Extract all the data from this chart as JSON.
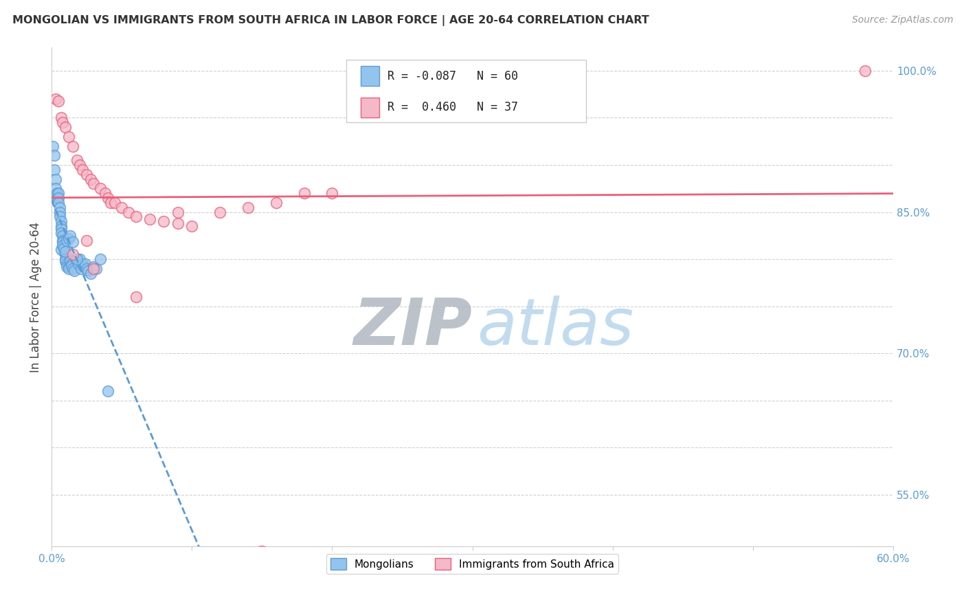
{
  "title": "MONGOLIAN VS IMMIGRANTS FROM SOUTH AFRICA IN LABOR FORCE | AGE 20-64 CORRELATION CHART",
  "source": "Source: ZipAtlas.com",
  "ylabel": "In Labor Force | Age 20-64",
  "x_min": 0.0,
  "x_max": 0.6,
  "y_min": 0.495,
  "y_max": 1.025,
  "y_ticks": [
    0.55,
    0.6,
    0.65,
    0.7,
    0.75,
    0.8,
    0.85,
    0.9,
    0.95,
    1.0
  ],
  "y_tick_labels": [
    "55.0%",
    "",
    "",
    "70.0%",
    "",
    "",
    "85.0%",
    "",
    "",
    "100.0%"
  ],
  "x_ticks": [
    0.0,
    0.1,
    0.2,
    0.3,
    0.4,
    0.5,
    0.6
  ],
  "x_tick_labels": [
    "0.0%",
    "",
    "",
    "",
    "",
    "",
    "60.0%"
  ],
  "mongolian_R": -0.087,
  "mongolian_N": 60,
  "southafrica_R": 0.46,
  "southafrica_N": 37,
  "mongolian_color": "#93C4ED",
  "southafrica_color": "#F5B8C8",
  "mongolian_line_color": "#5B9BD5",
  "southafrica_line_color": "#E8607A",
  "mongolian_x": [
    0.001,
    0.002,
    0.002,
    0.003,
    0.003,
    0.004,
    0.004,
    0.005,
    0.005,
    0.005,
    0.006,
    0.006,
    0.006,
    0.007,
    0.007,
    0.007,
    0.007,
    0.008,
    0.008,
    0.008,
    0.009,
    0.009,
    0.009,
    0.01,
    0.01,
    0.01,
    0.011,
    0.011,
    0.012,
    0.012,
    0.013,
    0.013,
    0.014,
    0.014,
    0.015,
    0.016,
    0.017,
    0.018,
    0.019,
    0.02,
    0.021,
    0.022,
    0.023,
    0.024,
    0.025,
    0.026,
    0.028,
    0.03,
    0.032,
    0.035,
    0.007,
    0.008,
    0.009,
    0.01,
    0.011,
    0.012,
    0.013,
    0.015,
    0.018,
    0.04
  ],
  "mongolian_y": [
    0.92,
    0.91,
    0.895,
    0.885,
    0.875,
    0.87,
    0.865,
    0.87,
    0.865,
    0.86,
    0.855,
    0.85,
    0.845,
    0.84,
    0.835,
    0.832,
    0.828,
    0.825,
    0.82,
    0.818,
    0.815,
    0.812,
    0.808,
    0.805,
    0.8,
    0.798,
    0.795,
    0.792,
    0.792,
    0.79,
    0.8,
    0.798,
    0.795,
    0.793,
    0.79,
    0.788,
    0.8,
    0.8,
    0.795,
    0.8,
    0.79,
    0.795,
    0.792,
    0.795,
    0.79,
    0.788,
    0.785,
    0.792,
    0.79,
    0.8,
    0.81,
    0.815,
    0.812,
    0.808,
    0.82,
    0.822,
    0.825,
    0.818,
    0.8,
    0.66
  ],
  "southafrica_x": [
    0.003,
    0.005,
    0.007,
    0.008,
    0.01,
    0.012,
    0.015,
    0.018,
    0.02,
    0.022,
    0.025,
    0.028,
    0.03,
    0.035,
    0.038,
    0.04,
    0.042,
    0.045,
    0.05,
    0.055,
    0.06,
    0.07,
    0.08,
    0.09,
    0.1,
    0.12,
    0.14,
    0.16,
    0.18,
    0.2,
    0.015,
    0.025,
    0.03,
    0.06,
    0.09,
    0.15,
    0.58
  ],
  "southafrica_y": [
    0.97,
    0.968,
    0.95,
    0.945,
    0.94,
    0.93,
    0.92,
    0.905,
    0.9,
    0.895,
    0.89,
    0.885,
    0.88,
    0.875,
    0.87,
    0.865,
    0.86,
    0.86,
    0.855,
    0.85,
    0.845,
    0.842,
    0.84,
    0.838,
    0.835,
    0.85,
    0.855,
    0.86,
    0.87,
    0.87,
    0.805,
    0.82,
    0.79,
    0.76,
    0.85,
    0.49,
    1.0
  ]
}
